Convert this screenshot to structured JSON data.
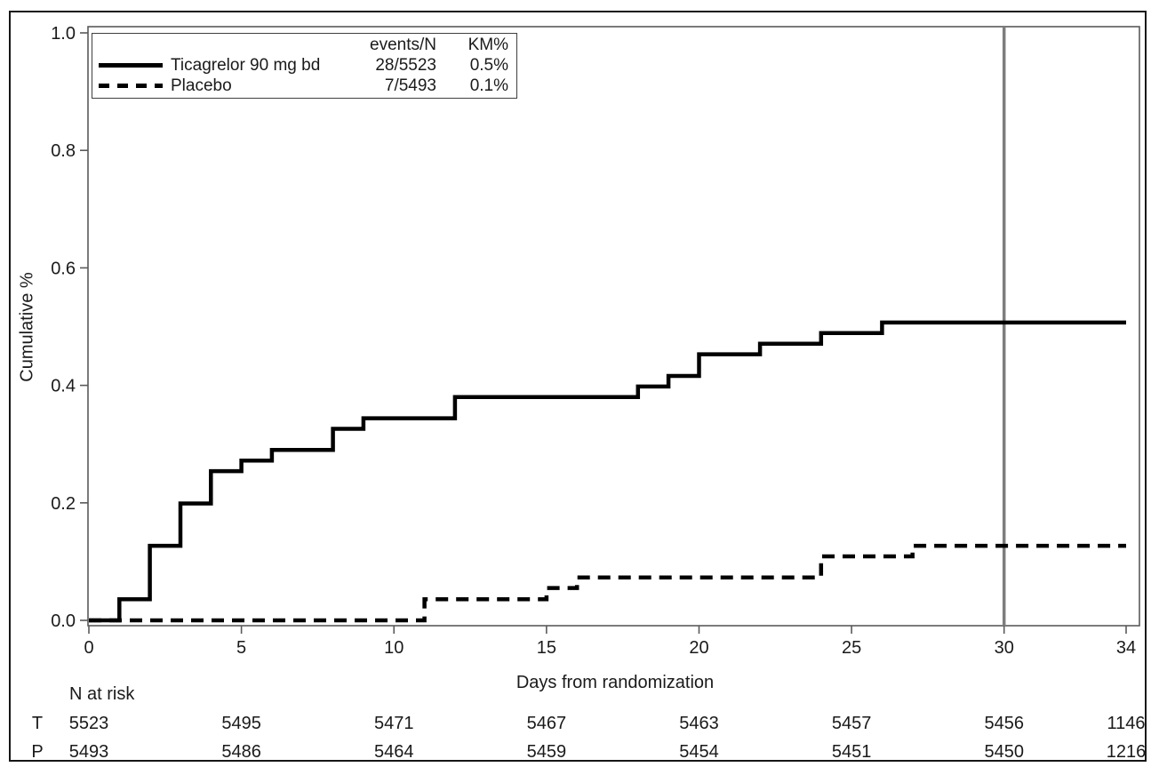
{
  "chart_data": {
    "type": "line",
    "subtype": "kaplan-meier-step",
    "xlabel": "Days from randomization",
    "ylabel": "Cumulative %",
    "xlim": [
      0,
      34
    ],
    "ylim": [
      0.0,
      1.0
    ],
    "x_ticks": [
      0,
      5,
      10,
      15,
      20,
      25,
      30,
      34
    ],
    "y_ticks": [
      "0.0",
      "0.2",
      "0.4",
      "0.6",
      "0.8",
      "1.0"
    ],
    "grid": false,
    "legend_position": "top-left-inside",
    "reference_line_x": 30,
    "series": [
      {
        "name": "Ticagrelor 90 mg bd",
        "line_style": "solid",
        "events_n": "28/5523",
        "km_pct": "0.5%",
        "steps": [
          [
            0,
            0.0
          ],
          [
            1,
            0.036
          ],
          [
            2,
            0.127
          ],
          [
            3,
            0.199
          ],
          [
            4,
            0.254
          ],
          [
            5,
            0.272
          ],
          [
            6,
            0.29
          ],
          [
            8,
            0.326
          ],
          [
            9,
            0.344
          ],
          [
            12,
            0.38
          ],
          [
            18,
            0.398
          ],
          [
            19,
            0.416
          ],
          [
            20,
            0.453
          ],
          [
            22,
            0.471
          ],
          [
            24,
            0.489
          ],
          [
            26,
            0.507
          ],
          [
            34,
            0.507
          ]
        ]
      },
      {
        "name": "Placebo",
        "line_style": "dashed",
        "events_n": "7/5493",
        "km_pct": "0.1%",
        "steps": [
          [
            0,
            0.0
          ],
          [
            11,
            0.036
          ],
          [
            15,
            0.055
          ],
          [
            16,
            0.073
          ],
          [
            24,
            0.109
          ],
          [
            27,
            0.127
          ],
          [
            34,
            0.127
          ]
        ]
      }
    ],
    "risk_table": {
      "label": "N at risk",
      "days": [
        0,
        5,
        10,
        15,
        20,
        25,
        30,
        34
      ],
      "rows": [
        {
          "label": "T",
          "values": [
            "5523",
            "5495",
            "5471",
            "5467",
            "5463",
            "5457",
            "5456",
            "1146"
          ]
        },
        {
          "label": "P",
          "values": [
            "5493",
            "5486",
            "5464",
            "5459",
            "5454",
            "5451",
            "5450",
            "1216"
          ]
        }
      ]
    }
  },
  "legend": {
    "header_events": "events/N",
    "header_km": "KM%"
  },
  "colors": {
    "line": "#000000",
    "reference_line": "#7d7d7d",
    "axis": "#5a5a5a",
    "text": "#1a1a1a",
    "background": "#ffffff",
    "outer_border": "#161616"
  }
}
